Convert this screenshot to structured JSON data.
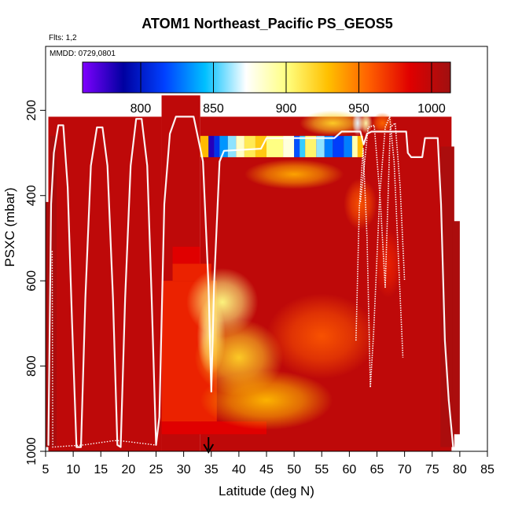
{
  "chart_data": {
    "type": "heatmap",
    "title": "ATOM1 Northeast_Pacific PS_GEOS5",
    "annotations": {
      "flights": "Flts: 1,2",
      "dates": "MMDD: 0729,0801"
    },
    "xlabel": "Latitude (deg N)",
    "ylabel": "PSXC (mbar)",
    "xlim": [
      5,
      85
    ],
    "ylim": [
      1000,
      50
    ],
    "y_reversed": true,
    "grid": false,
    "x_ticks": [
      "5",
      "10",
      "15",
      "20",
      "25",
      "30",
      "35",
      "40",
      "45",
      "50",
      "55",
      "60",
      "65",
      "70",
      "75",
      "80",
      "85"
    ],
    "y_ticks": [
      "200",
      "400",
      "600",
      "800",
      "1000"
    ],
    "colorbar": {
      "placement": "top",
      "range": [
        760,
        1013
      ],
      "ticks": [
        "800",
        "850",
        "900",
        "950",
        "1000"
      ],
      "colors": [
        "#7f00ff",
        "#0000a0",
        "#0040ff",
        "#00c0ff",
        "#ffffff",
        "#ffff80",
        "#ffc000",
        "#ff6000",
        "#e00000",
        "#a01010"
      ]
    },
    "fields": [
      {
        "lat_min": 5.5,
        "lat_max": 26,
        "p_top": 215,
        "p_bottom": 1000,
        "value": 1000
      },
      {
        "lat_min": 26,
        "lat_max": 33,
        "p_top": 165,
        "p_bottom": 1000,
        "value": 1000
      },
      {
        "lat_min": 33,
        "lat_max": 78.5,
        "p_top": 215,
        "p_bottom": 1000,
        "value": 1000
      }
    ],
    "bands": [
      {
        "lat_min": 28,
        "lat_max": 33,
        "p_top": 520,
        "p_bottom": 560,
        "value": 985
      },
      {
        "lat_min": 28,
        "lat_max": 35,
        "p_top": 560,
        "p_bottom": 600,
        "value": 975
      },
      {
        "lat_min": 26,
        "lat_max": 36,
        "p_top": 600,
        "p_bottom": 930,
        "value": 975
      },
      {
        "lat_min": 26,
        "lat_max": 45,
        "p_top": 930,
        "p_bottom": 960,
        "value": 985
      }
    ],
    "hotspots": [
      {
        "lat": 35,
        "p": 730,
        "value": 895,
        "lat_radius": 2.6,
        "p_radius": 90
      },
      {
        "lat": 37,
        "p": 650,
        "value": 900,
        "lat_radius": 6.5,
        "p_radius": 80
      },
      {
        "lat": 40,
        "p": 780,
        "value": 920,
        "lat_radius": 8,
        "p_radius": 90
      },
      {
        "lat": 45,
        "p": 880,
        "value": 930,
        "lat_radius": 12,
        "p_radius": 70
      },
      {
        "lat": 55,
        "p": 730,
        "value": 960,
        "lat_radius": 10,
        "p_radius": 100
      },
      {
        "lat": 50,
        "p": 350,
        "value": 935,
        "lat_radius": 9,
        "p_radius": 35
      },
      {
        "lat": 57,
        "p": 230,
        "value": 920,
        "lat_radius": 6,
        "p_radius": 30
      },
      {
        "lat": 61.5,
        "p": 230,
        "value": 870,
        "lat_radius": 1,
        "p_radius": 30
      },
      {
        "lat": 63,
        "p": 230,
        "value": 890,
        "lat_radius": 1.2,
        "p_radius": 25
      },
      {
        "lat": 66,
        "p": 230,
        "value": 955,
        "lat_radius": 2,
        "p_radius": 25
      },
      {
        "lat": 62,
        "p": 420,
        "value": 960,
        "lat_radius": 3,
        "p_radius": 60
      },
      {
        "lat": 67,
        "p": 560,
        "value": 975,
        "lat_radius": 2.5,
        "p_radius": 80
      }
    ],
    "strip": {
      "p_top": 260,
      "p_bottom": 310,
      "cells": [
        {
          "lat_min": 33,
          "lat_max": 34.5,
          "value": 930
        },
        {
          "lat_min": 34.5,
          "lat_max": 35.5,
          "value": 780
        },
        {
          "lat_min": 35.5,
          "lat_max": 36.5,
          "value": 810
        },
        {
          "lat_min": 36.5,
          "lat_max": 38,
          "value": 835
        },
        {
          "lat_min": 38,
          "lat_max": 39.5,
          "value": 860
        },
        {
          "lat_min": 39.5,
          "lat_max": 41,
          "value": 885
        },
        {
          "lat_min": 41,
          "lat_max": 43,
          "value": 910
        },
        {
          "lat_min": 43,
          "lat_max": 45,
          "value": 925
        },
        {
          "lat_min": 45,
          "lat_max": 48,
          "value": 900
        },
        {
          "lat_min": 48,
          "lat_max": 50,
          "value": 880
        },
        {
          "lat_min": 50,
          "lat_max": 51,
          "value": 820
        },
        {
          "lat_min": 51,
          "lat_max": 52,
          "value": 850
        },
        {
          "lat_min": 52,
          "lat_max": 54,
          "value": 905
        },
        {
          "lat_min": 54,
          "lat_max": 55.5,
          "value": 860
        },
        {
          "lat_min": 55.5,
          "lat_max": 57,
          "value": 830
        },
        {
          "lat_min": 57,
          "lat_max": 59,
          "value": 815
        },
        {
          "lat_min": 59,
          "lat_max": 60.5,
          "value": 830
        },
        {
          "lat_min": 60.5,
          "lat_max": 61.5,
          "value": 890
        },
        {
          "lat_min": 61.5,
          "lat_max": 62.5,
          "value": 930
        }
      ]
    },
    "cover_blocks": [
      {
        "lat_min": 5,
        "lat_max": 6,
        "p_top": 415,
        "p_bottom": 990,
        "value": 1008
      },
      {
        "lat_min": 5.8,
        "lat_max": 7,
        "p_top": 260,
        "p_bottom": 990,
        "value": 1008
      },
      {
        "lat_min": 76.5,
        "lat_max": 79,
        "p_top": 285,
        "p_bottom": 990,
        "value": 1008
      },
      {
        "lat_min": 78.7,
        "lat_max": 80,
        "p_top": 460,
        "p_bottom": 960,
        "value": 1008
      }
    ],
    "flight_track": [
      [
        5.5,
        985
      ],
      [
        6,
        420
      ],
      [
        6.5,
        300
      ],
      [
        7.3,
        235
      ],
      [
        8.2,
        235
      ],
      [
        9,
        380
      ],
      [
        9.8,
        700
      ],
      [
        10.6,
        990
      ],
      [
        11.4,
        990
      ],
      [
        12.2,
        640
      ],
      [
        13.2,
        330
      ],
      [
        14.3,
        240
      ],
      [
        15.3,
        240
      ],
      [
        16.2,
        330
      ],
      [
        17.2,
        640
      ],
      [
        18,
        985
      ],
      [
        18.6,
        990
      ],
      [
        19.4,
        640
      ],
      [
        20.4,
        330
      ],
      [
        21.4,
        220
      ],
      [
        22.4,
        220
      ],
      [
        23.4,
        330
      ],
      [
        24.2,
        640
      ],
      [
        25,
        985
      ],
      [
        25.6,
        920
      ],
      [
        26.5,
        420
      ],
      [
        27.5,
        255
      ],
      [
        28.6,
        215
      ],
      [
        31.8,
        215
      ],
      [
        33.5,
        320
      ],
      [
        34.5,
        610
      ],
      [
        35,
        860
      ],
      [
        35.5,
        610
      ],
      [
        36.5,
        320
      ],
      [
        37.3,
        295
      ],
      [
        44,
        290
      ],
      [
        45,
        265
      ],
      [
        49,
        265
      ],
      [
        56,
        265
      ],
      [
        57.3,
        265
      ],
      [
        58.6,
        250
      ],
      [
        61,
        250
      ],
      [
        62,
        250
      ],
      [
        62.6,
        280
      ],
      [
        63.2,
        255
      ],
      [
        64,
        250
      ],
      [
        70.3,
        250
      ],
      [
        70.6,
        300
      ],
      [
        71.2,
        310
      ],
      [
        73.2,
        310
      ],
      [
        73.7,
        265
      ],
      [
        76,
        265
      ],
      [
        76.6,
        420
      ],
      [
        77.3,
        740
      ],
      [
        78,
        880
      ],
      [
        78.8,
        990
      ]
    ],
    "track_left_edges": [
      [
        6.2,
        530
      ],
      [
        6.3,
        990
      ],
      [
        11.9,
        985
      ],
      [
        17.4,
        975
      ],
      [
        18.4,
        975
      ],
      [
        24.8,
        985
      ]
    ],
    "track_right_branch": [
      [
        61.2,
        740
      ],
      [
        61.8,
        430
      ],
      [
        62.5,
        290
      ],
      [
        63.2,
        500
      ],
      [
        63.8,
        850
      ],
      [
        64.4,
        720
      ],
      [
        65.5,
        400
      ],
      [
        66.5,
        240
      ],
      [
        67.3,
        215
      ],
      [
        68.1,
        320
      ],
      [
        68.9,
        550
      ],
      [
        69.7,
        780
      ]
    ],
    "track_left_branch": [
      [
        62,
        415
      ],
      [
        62.7,
        330
      ],
      [
        63.4,
        240
      ],
      [
        64.5,
        235
      ],
      [
        65.6,
        410
      ],
      [
        66.5,
        615
      ],
      [
        67.4,
        240
      ],
      [
        68.3,
        230
      ],
      [
        69.2,
        380
      ],
      [
        70,
        600
      ]
    ],
    "marker": {
      "lat": 34.5,
      "p": 1000,
      "symbol": "down-arrow"
    }
  }
}
